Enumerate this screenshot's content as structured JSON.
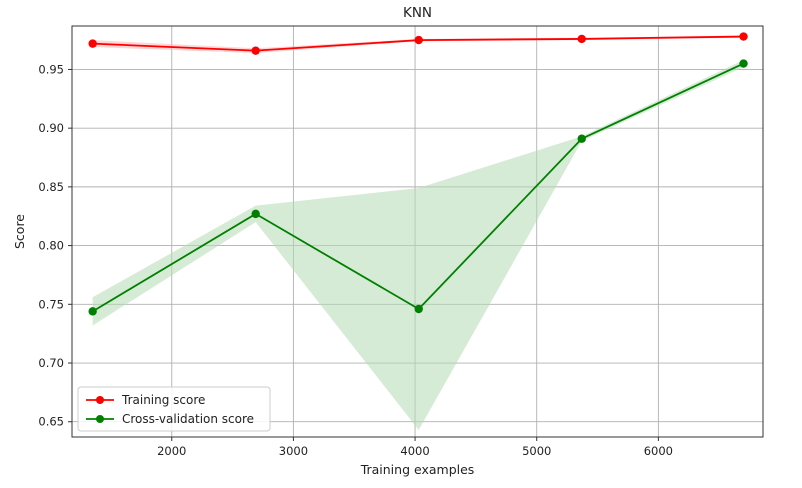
{
  "chart_data": {
    "type": "line",
    "title": "KNN",
    "xlabel": "Training examples",
    "ylabel": "Score",
    "xlim": [
      1180,
      6860
    ],
    "ylim": [
      0.637,
      0.987
    ],
    "xticks": [
      2000,
      3000,
      4000,
      5000,
      6000
    ],
    "yticks": [
      0.65,
      0.7,
      0.75,
      0.8,
      0.85,
      0.9,
      0.95
    ],
    "ytick_labels": [
      "0.65",
      "0.70",
      "0.75",
      "0.80",
      "0.85",
      "0.90",
      "0.95"
    ],
    "grid": true,
    "legend_position": "lower-left",
    "x": [
      1350,
      2690,
      4030,
      5370,
      6700
    ],
    "series": [
      {
        "name": "Training score",
        "color": "#ff0000",
        "band_color": "#ffb3b3",
        "values": [
          0.972,
          0.966,
          0.975,
          0.976,
          0.978
        ],
        "band_low": [
          0.969,
          0.964,
          0.974,
          0.975,
          0.977
        ],
        "band_high": [
          0.975,
          0.968,
          0.976,
          0.977,
          0.979
        ]
      },
      {
        "name": "Cross-validation score",
        "color": "#008000",
        "band_color": "#b5dbb5",
        "values": [
          0.744,
          0.827,
          0.746,
          0.891,
          0.955
        ],
        "band_low": [
          0.732,
          0.82,
          0.643,
          0.889,
          0.952
        ],
        "band_high": [
          0.756,
          0.834,
          0.849,
          0.893,
          0.958
        ]
      }
    ]
  }
}
